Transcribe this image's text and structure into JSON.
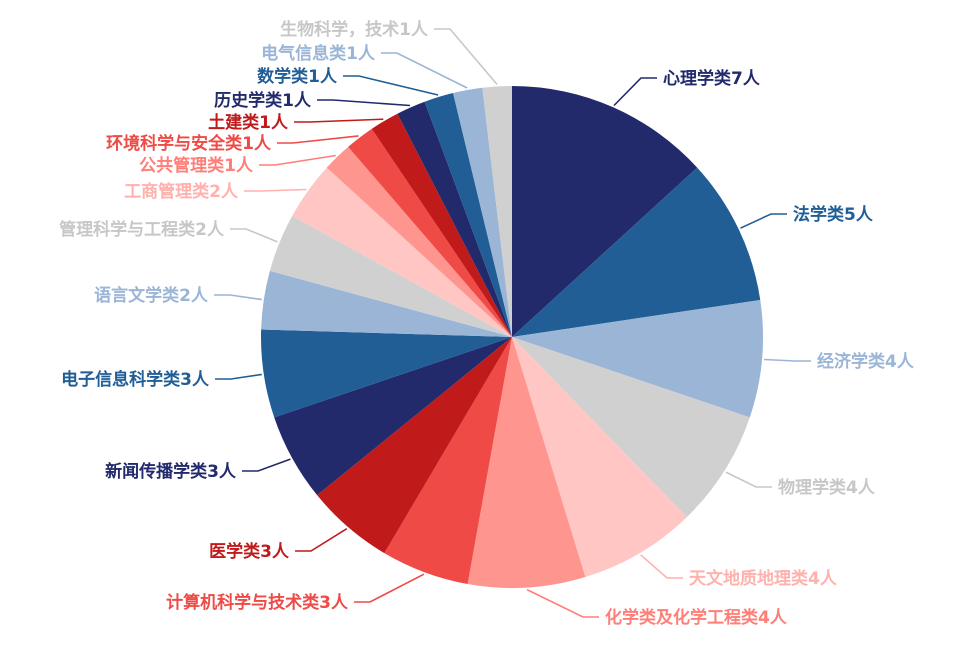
{
  "chart_data": {
    "type": "pie",
    "title": "",
    "slices": [
      {
        "label": "心理学类7人",
        "value": 7,
        "color": "#222a6c"
      },
      {
        "label": "法学类5人",
        "value": 5,
        "color": "#215e96"
      },
      {
        "label": "经济学类4人",
        "value": 4,
        "color": "#9ab5d6"
      },
      {
        "label": "物理学类4人",
        "value": 4,
        "color": "#d0d0d0"
      },
      {
        "label": "天文地质地理类4人",
        "value": 4,
        "color": "#ffc6c4"
      },
      {
        "label": "化学类及化学工程类4人",
        "value": 4,
        "color": "#ff958f"
      },
      {
        "label": "计算机科学与技术类3人",
        "value": 3,
        "color": "#ef4a45"
      },
      {
        "label": "医学类3人",
        "value": 3,
        "color": "#c01a1a"
      },
      {
        "label": "新闻传播学类3人",
        "value": 3,
        "color": "#222a6c"
      },
      {
        "label": "电子信息科学类3人",
        "value": 3,
        "color": "#215e96"
      },
      {
        "label": "语言文学类2人",
        "value": 2,
        "color": "#9ab5d6"
      },
      {
        "label": "管理科学与工程类2人",
        "value": 2,
        "color": "#d0d0d0"
      },
      {
        "label": "工商管理类2人",
        "value": 2,
        "color": "#ffc6c4"
      },
      {
        "label": "公共管理类1人",
        "value": 1,
        "color": "#ff958f"
      },
      {
        "label": "环境科学与安全类1人",
        "value": 1,
        "color": "#ef4a45"
      },
      {
        "label": "土建类1人",
        "value": 1,
        "color": "#c01a1a"
      },
      {
        "label": "历史学类1人",
        "value": 1,
        "color": "#222a6c"
      },
      {
        "label": "数学类1人",
        "value": 1,
        "color": "#215e96"
      },
      {
        "label": "电气信息类1人",
        "value": 1,
        "color": "#9ab5d6"
      },
      {
        "label": "生物科学，技术1人",
        "value": 1,
        "color": "#d0d0d0"
      }
    ],
    "label_colors": [
      "#222a6c",
      "#215e96",
      "#9ab5d6",
      "#c7c7c7",
      "#ffb1ad",
      "#ff7e78",
      "#ef4a45",
      "#c01a1a",
      "#222a6c",
      "#215e96",
      "#9ab5d6",
      "#c7c7c7",
      "#ffb1ad",
      "#ff7e78",
      "#ef4a45",
      "#c01a1a",
      "#222a6c",
      "#215e96",
      "#9ab5d6",
      "#c7c7c7"
    ]
  }
}
